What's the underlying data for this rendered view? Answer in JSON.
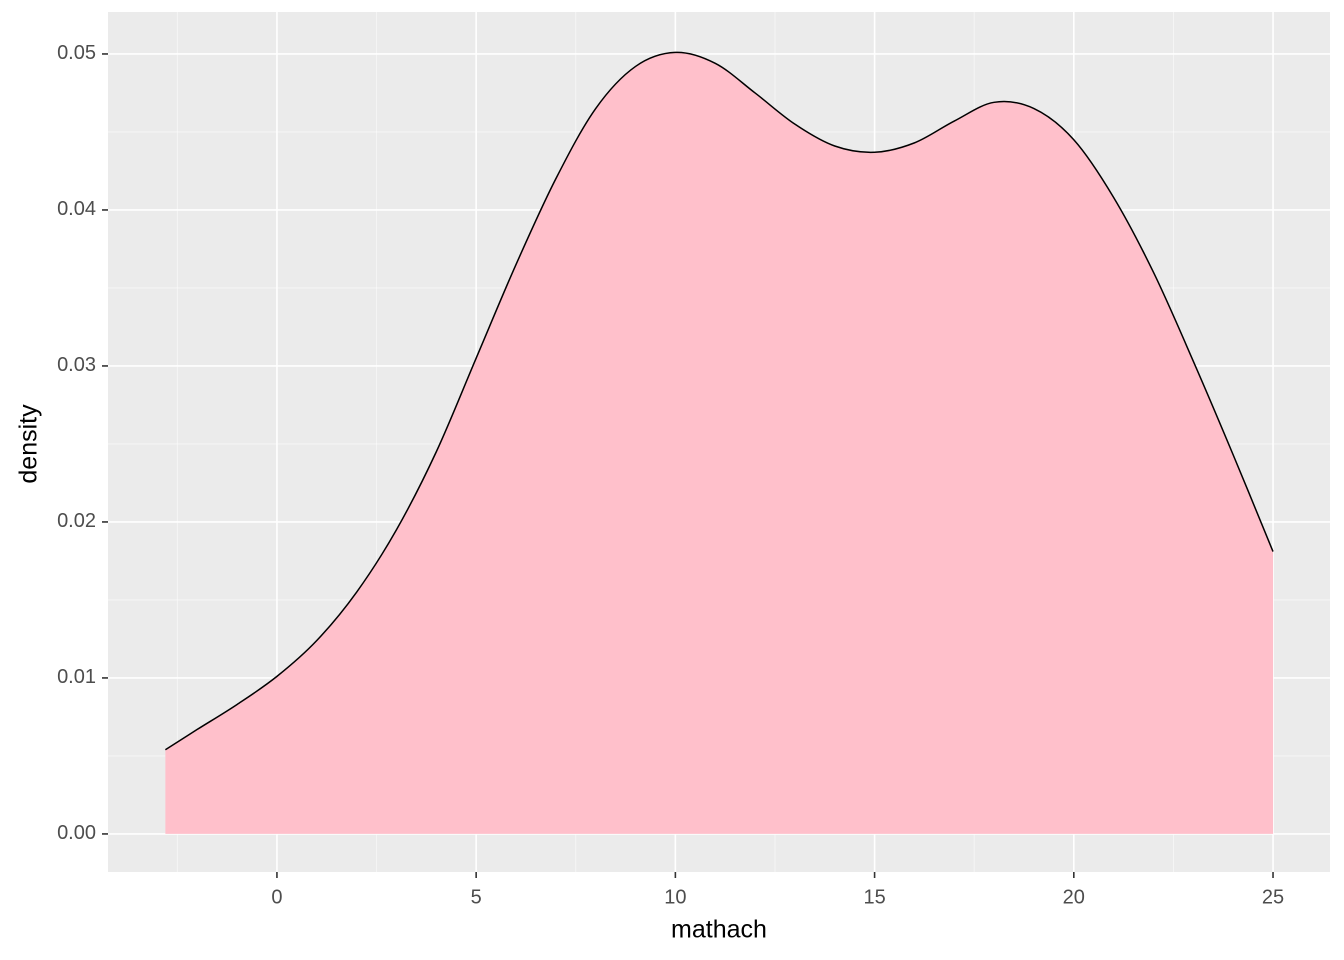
{
  "chart_data": {
    "type": "density",
    "x_label": "mathach",
    "y_label": "density",
    "x": [
      -2.8,
      -2,
      -1,
      0,
      1,
      2,
      3,
      4,
      5,
      6,
      7,
      8,
      9,
      10,
      11,
      12,
      13,
      14,
      15,
      16,
      17,
      18,
      19,
      20,
      21,
      22,
      23,
      24,
      25
    ],
    "values": [
      0.0054,
      0.0067,
      0.0083,
      0.0101,
      0.0124,
      0.0155,
      0.0195,
      0.0245,
      0.0305,
      0.0365,
      0.042,
      0.0465,
      0.0492,
      0.0501,
      0.0494,
      0.0475,
      0.0455,
      0.0441,
      0.0437,
      0.0443,
      0.0457,
      0.0469,
      0.0465,
      0.0445,
      0.0408,
      0.036,
      0.0303,
      0.0243,
      0.0181
    ],
    "fill": "#FFC0CB",
    "line_color": "#000000",
    "xlim": [
      -4.24,
      26.43
    ],
    "ylim": [
      -0.00244,
      0.05269
    ],
    "xticks": [
      0,
      5,
      10,
      15,
      20,
      25
    ],
    "yticks": [
      {
        "value": 0,
        "label": "0.00"
      },
      {
        "value": 0.01,
        "label": "0.01"
      },
      {
        "value": 0.02,
        "label": "0.02"
      },
      {
        "value": 0.03,
        "label": "0.03"
      },
      {
        "value": 0.04,
        "label": "0.04"
      },
      {
        "value": 0.05,
        "label": "0.05"
      }
    ],
    "xminor_ticks": [
      -2.5,
      2.5,
      7.5,
      12.5,
      17.5,
      22.5
    ],
    "yminor_ticks": [
      0.005,
      0.015,
      0.025,
      0.035,
      0.045
    ],
    "grid": true
  }
}
